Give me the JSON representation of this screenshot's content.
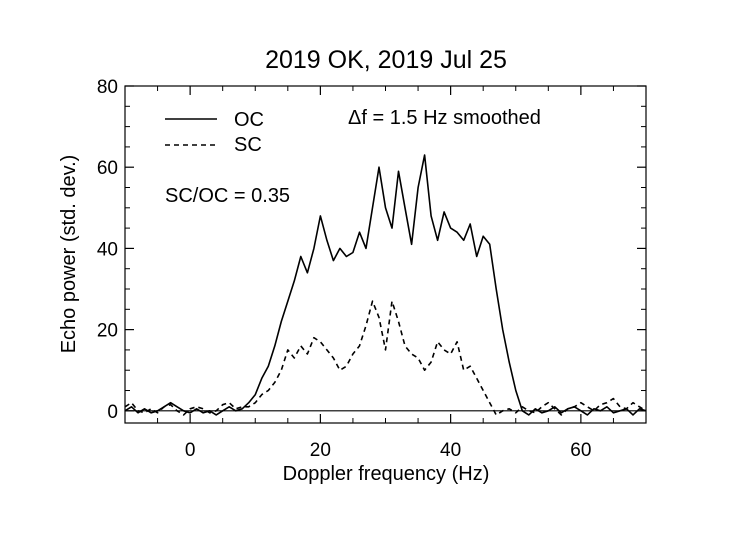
{
  "chart_data": {
    "type": "line",
    "title": "2019 OK, 2019 Jul 25",
    "xlabel": "Doppler frequency (Hz)",
    "ylabel": "Echo power (std. dev.)",
    "xlim": [
      -10,
      70
    ],
    "ylim": [
      -3,
      80
    ],
    "x_ticks": [
      0,
      20,
      40,
      60
    ],
    "y_ticks": [
      0,
      20,
      40,
      60,
      80
    ],
    "grid": false,
    "legend_position": "top-left",
    "annotations": {
      "resolution": "Δf = 1.5 Hz smoothed",
      "ratio": "SC/OC = 0.35"
    },
    "zero_line": 0,
    "series": [
      {
        "name": "OC",
        "style": "solid",
        "x": [
          -10,
          -9,
          -8,
          -7,
          -6,
          -5,
          -4,
          -3,
          -2,
          -1,
          0,
          1,
          2,
          3,
          4,
          5,
          6,
          7,
          8,
          9,
          10,
          11,
          12,
          13,
          14,
          15,
          16,
          17,
          18,
          19,
          20,
          21,
          22,
          23,
          24,
          25,
          26,
          27,
          28,
          29,
          30,
          31,
          32,
          33,
          34,
          35,
          36,
          37,
          38,
          39,
          40,
          41,
          42,
          43,
          44,
          45,
          46,
          47,
          48,
          49,
          50,
          51,
          52,
          53,
          54,
          55,
          56,
          57,
          58,
          59,
          60,
          61,
          62,
          63,
          64,
          65,
          66,
          67,
          68,
          69,
          70
        ],
        "y": [
          0,
          1,
          -0.5,
          0.5,
          -0.5,
          0,
          1,
          2,
          1,
          0,
          -0.5,
          0.5,
          -0.5,
          0,
          -1,
          0,
          1,
          0,
          0.5,
          2,
          4,
          8,
          11,
          16,
          22,
          27,
          32,
          38,
          34,
          40,
          48,
          42,
          37,
          40,
          38,
          39,
          44,
          40,
          50,
          60,
          50,
          45,
          59,
          50,
          41,
          55,
          63,
          48,
          42,
          49,
          45,
          44,
          42,
          46,
          38,
          43,
          41,
          30,
          20,
          12,
          5,
          0,
          -1,
          0.5,
          -0.5,
          0,
          1,
          -0.5,
          0.5,
          1,
          0,
          -1,
          0.5,
          0,
          1,
          -0.5,
          0,
          0.5,
          -1,
          0.5,
          0
        ]
      },
      {
        "name": "SC",
        "style": "dashed",
        "x": [
          -10,
          -9,
          -8,
          -7,
          -6,
          -5,
          -4,
          -3,
          -2,
          -1,
          0,
          1,
          2,
          3,
          4,
          5,
          6,
          7,
          8,
          9,
          10,
          11,
          12,
          13,
          14,
          15,
          16,
          17,
          18,
          19,
          20,
          21,
          22,
          23,
          24,
          25,
          26,
          27,
          28,
          29,
          30,
          31,
          32,
          33,
          34,
          35,
          36,
          37,
          38,
          39,
          40,
          41,
          42,
          43,
          44,
          45,
          46,
          47,
          48,
          49,
          50,
          51,
          52,
          53,
          54,
          55,
          56,
          57,
          58,
          59,
          60,
          61,
          62,
          63,
          64,
          65,
          66,
          67,
          68,
          69,
          70
        ],
        "y": [
          1,
          2,
          0,
          -0.5,
          0.5,
          -0.5,
          1,
          1.5,
          0,
          -1,
          0.5,
          1,
          0.5,
          -0.5,
          0,
          1.5,
          2,
          0.5,
          1,
          1,
          2,
          4,
          5,
          7,
          10,
          15,
          13,
          16,
          14,
          18,
          17,
          15,
          13,
          10,
          11,
          14,
          16,
          21,
          27,
          23,
          15,
          27,
          22,
          16,
          14,
          13,
          10,
          12,
          17,
          15,
          14,
          17,
          10,
          11,
          8,
          5,
          2,
          -1,
          0,
          0.5,
          -0.5,
          1,
          0,
          -0.5,
          1,
          2,
          0.5,
          -1,
          0.5,
          1,
          2,
          1,
          0,
          1.5,
          2,
          3,
          1,
          0.5,
          2,
          1,
          0
        ]
      }
    ]
  }
}
